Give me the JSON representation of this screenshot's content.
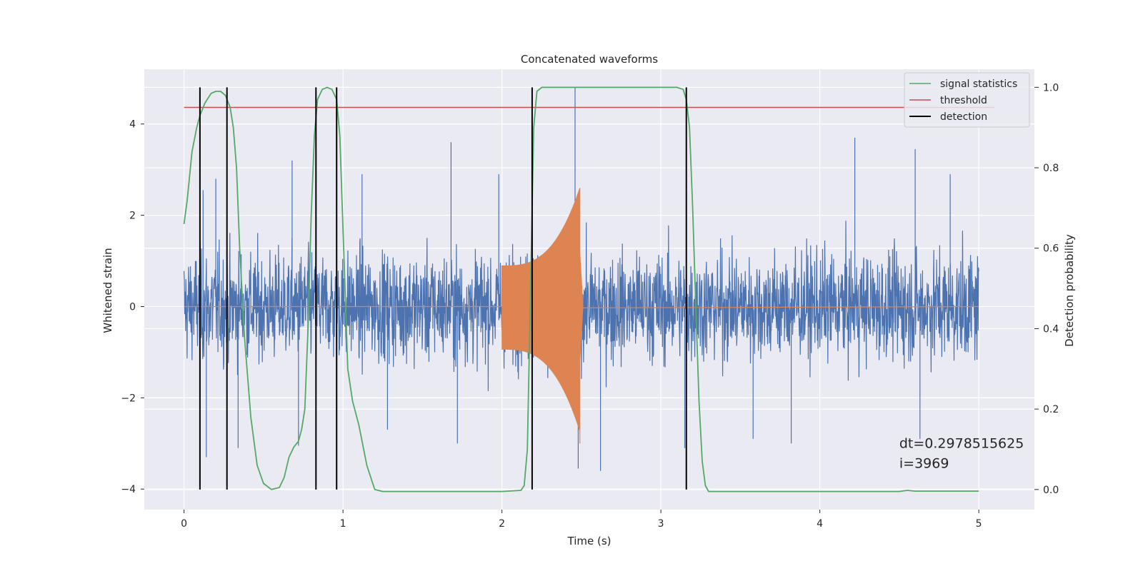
{
  "chart_data": {
    "type": "line",
    "title": "Concatenated waveforms",
    "xlabel": "Time (s)",
    "ylabel": "Whitened strain",
    "y2label": "Detection probability",
    "xlim": [
      -0.25,
      5.35
    ],
    "ylim": [
      -4.45,
      5.2
    ],
    "y2lim": [
      -0.05,
      1.045
    ],
    "xticks": [
      "0",
      "1",
      "2",
      "3",
      "4",
      "5"
    ],
    "yticks": [
      "−4",
      "−2",
      "0",
      "2",
      "4"
    ],
    "y2ticks": [
      "0.0",
      "0.2",
      "0.4",
      "0.6",
      "0.8",
      "1.0"
    ],
    "grid": true,
    "legend_position": "top-right",
    "series": [
      {
        "name": "",
        "role": "whitened strain noise",
        "color": "#4c72b0",
        "x_range": [
          0,
          5
        ],
        "typical_amplitude": 1.6,
        "extreme_peaks": [
          {
            "x": 0.12,
            "y": 2.55
          },
          {
            "x": 0.14,
            "y": -3.3
          },
          {
            "x": 0.2,
            "y": 2.8
          },
          {
            "x": 0.34,
            "y": -3.1
          },
          {
            "x": 0.68,
            "y": 3.2
          },
          {
            "x": 0.72,
            "y": -3.05
          },
          {
            "x": 1.12,
            "y": 2.9
          },
          {
            "x": 1.28,
            "y": -2.7
          },
          {
            "x": 1.68,
            "y": 3.6
          },
          {
            "x": 1.72,
            "y": -3.0
          },
          {
            "x": 1.98,
            "y": 2.9
          },
          {
            "x": 2.46,
            "y": 4.8
          },
          {
            "x": 2.48,
            "y": -3.55
          },
          {
            "x": 2.62,
            "y": -3.6
          },
          {
            "x": 3.15,
            "y": -3.1
          },
          {
            "x": 3.58,
            "y": -2.9
          },
          {
            "x": 3.82,
            "y": -3.0
          },
          {
            "x": 4.22,
            "y": 3.7
          },
          {
            "x": 4.6,
            "y": 3.45
          },
          {
            "x": 4.63,
            "y": -2.9
          },
          {
            "x": 4.82,
            "y": 2.9
          }
        ]
      },
      {
        "name": "",
        "role": "injected chirp",
        "color": "#dd8452",
        "x_range": [
          0,
          5
        ],
        "chirp_start": 2.0,
        "chirp_merger": 2.49,
        "chirp_start_amplitude": 0.9,
        "chirp_peak_amplitude": 2.6,
        "chirp_trough": -3.0
      },
      {
        "name": "signal statistics",
        "axis": "right",
        "color": "#55a868",
        "points": [
          [
            0.0,
            0.66
          ],
          [
            0.02,
            0.72
          ],
          [
            0.05,
            0.84
          ],
          [
            0.08,
            0.9
          ],
          [
            0.1,
            0.93
          ],
          [
            0.13,
            0.96
          ],
          [
            0.17,
            0.985
          ],
          [
            0.2,
            0.99
          ],
          [
            0.23,
            0.99
          ],
          [
            0.26,
            0.98
          ],
          [
            0.29,
            0.95
          ],
          [
            0.31,
            0.9
          ],
          [
            0.33,
            0.8
          ],
          [
            0.35,
            0.6
          ],
          [
            0.38,
            0.38
          ],
          [
            0.42,
            0.18
          ],
          [
            0.46,
            0.06
          ],
          [
            0.5,
            0.015
          ],
          [
            0.55,
            0.0
          ],
          [
            0.6,
            0.005
          ],
          [
            0.63,
            0.03
          ],
          [
            0.66,
            0.08
          ],
          [
            0.69,
            0.105
          ],
          [
            0.72,
            0.12
          ],
          [
            0.74,
            0.15
          ],
          [
            0.76,
            0.2
          ],
          [
            0.78,
            0.4
          ],
          [
            0.8,
            0.68
          ],
          [
            0.82,
            0.88
          ],
          [
            0.84,
            0.97
          ],
          [
            0.87,
            0.995
          ],
          [
            0.9,
            1.0
          ],
          [
            0.93,
            0.995
          ],
          [
            0.96,
            0.97
          ],
          [
            0.98,
            0.88
          ],
          [
            1.0,
            0.65
          ],
          [
            1.03,
            0.3
          ],
          [
            1.06,
            0.22
          ],
          [
            1.1,
            0.16
          ],
          [
            1.15,
            0.06
          ],
          [
            1.2,
            0.0
          ],
          [
            1.25,
            -0.005
          ],
          [
            1.6,
            -0.005
          ],
          [
            2.0,
            -0.005
          ],
          [
            2.12,
            -0.002
          ],
          [
            2.14,
            0.01
          ],
          [
            2.16,
            0.1
          ],
          [
            2.18,
            0.5
          ],
          [
            2.2,
            0.9
          ],
          [
            2.22,
            0.99
          ],
          [
            2.25,
            1.0
          ],
          [
            3.1,
            1.0
          ],
          [
            3.14,
            0.995
          ],
          [
            3.16,
            0.97
          ],
          [
            3.18,
            0.9
          ],
          [
            3.2,
            0.7
          ],
          [
            3.22,
            0.45
          ],
          [
            3.24,
            0.22
          ],
          [
            3.26,
            0.07
          ],
          [
            3.28,
            0.01
          ],
          [
            3.3,
            -0.005
          ],
          [
            3.5,
            -0.005
          ],
          [
            4.5,
            -0.005
          ],
          [
            4.55,
            -0.002
          ],
          [
            4.6,
            -0.004
          ],
          [
            5.0,
            -0.004
          ]
        ]
      },
      {
        "name": "threshold",
        "axis": "right",
        "color": "#c44e52",
        "points": [
          [
            0.0,
            0.95
          ],
          [
            5.1,
            0.95
          ]
        ]
      },
      {
        "name": "detection",
        "axis": "right",
        "color": "#000000",
        "vlines": [
          0.1,
          0.27,
          0.83,
          0.96,
          2.19,
          3.16
        ],
        "y2_range": [
          0.0,
          1.0
        ]
      }
    ],
    "annotation": {
      "line1": "dt=0.2978515625",
      "line2": " i=3969",
      "x": 4.5,
      "y": -3.0
    }
  }
}
